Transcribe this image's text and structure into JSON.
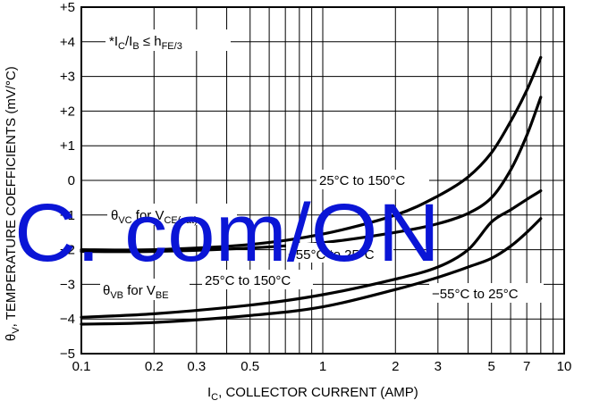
{
  "chart_data": {
    "type": "line",
    "title": "",
    "xlabel": "I",
    "xlabel_sub": "C",
    "xlabel_rest": ", COLLECTOR CURRENT (AMP)",
    "ylabel": "θ",
    "ylabel_sub": "V",
    "ylabel_rest": ", TEMPERATURE COEFFICIENTS (mV/°C)",
    "xscale": "log",
    "xlim": [
      0.1,
      10
    ],
    "ylim": [
      -5,
      5
    ],
    "grid": true,
    "x_ticks": [
      0.1,
      0.2,
      0.3,
      0.5,
      1,
      2,
      3,
      5,
      7,
      10
    ],
    "x_tick_labels": [
      "0.1",
      "0.2",
      "0.3",
      "0.5",
      "1",
      "2",
      "3",
      "5",
      "7",
      "10"
    ],
    "y_ticks": [
      5,
      4,
      3,
      2,
      1,
      0,
      -1,
      -2,
      -3,
      -4,
      -5
    ],
    "y_tick_labels": [
      "+5",
      "+4",
      "+3",
      "+2",
      "+1",
      "0",
      "−1",
      "−2",
      "−3",
      "−4",
      "−5"
    ],
    "series": [
      {
        "x": [
          0.1,
          0.2,
          0.5,
          1,
          2,
          3,
          4,
          5,
          6,
          7,
          8
        ],
        "y": [
          -2.0,
          -2.0,
          -1.85,
          -1.55,
          -1.0,
          -0.45,
          0.1,
          0.8,
          1.7,
          2.6,
          3.55
        ]
      },
      {
        "x": [
          0.1,
          0.2,
          0.5,
          1,
          2,
          3,
          4,
          5,
          6,
          7,
          8
        ],
        "y": [
          -2.05,
          -2.05,
          -1.95,
          -1.8,
          -1.5,
          -1.25,
          -0.95,
          -0.5,
          0.3,
          1.3,
          2.4
        ]
      },
      {
        "x": [
          0.1,
          0.2,
          0.5,
          1,
          2,
          3,
          4,
          5,
          6,
          7,
          8
        ],
        "y": [
          -3.95,
          -3.85,
          -3.6,
          -3.3,
          -2.85,
          -2.5,
          -2.0,
          -1.2,
          -0.85,
          -0.55,
          -0.3
        ]
      },
      {
        "x": [
          0.1,
          0.2,
          0.5,
          1,
          2,
          3,
          4,
          5,
          6,
          7,
          8
        ],
        "y": [
          -4.15,
          -4.1,
          -3.9,
          -3.65,
          -3.15,
          -2.8,
          -2.5,
          -2.25,
          -1.9,
          -1.5,
          -1.1
        ]
      }
    ],
    "annotations": [
      {
        "text": "*I",
        "sub": "C",
        "mid": "/I",
        "sub2": "B",
        "rest": " ≤ h",
        "sub3": "FE/3"
      },
      {
        "text": "θ",
        "sub": "VC",
        "rest": " for V",
        "sub2": "CE(sat)"
      },
      {
        "text": "θ",
        "sub": "VB",
        "rest": " for V",
        "sub2": "BE"
      },
      {
        "text": "25°C to 150°C"
      },
      {
        "text": "−55°C to 25°C"
      },
      {
        "text": "25°C to 150°C"
      },
      {
        "text": "−55°C to 25°C"
      }
    ]
  },
  "watermark": {
    "text": "C. com/ON",
    "color": "#0a15d6"
  }
}
